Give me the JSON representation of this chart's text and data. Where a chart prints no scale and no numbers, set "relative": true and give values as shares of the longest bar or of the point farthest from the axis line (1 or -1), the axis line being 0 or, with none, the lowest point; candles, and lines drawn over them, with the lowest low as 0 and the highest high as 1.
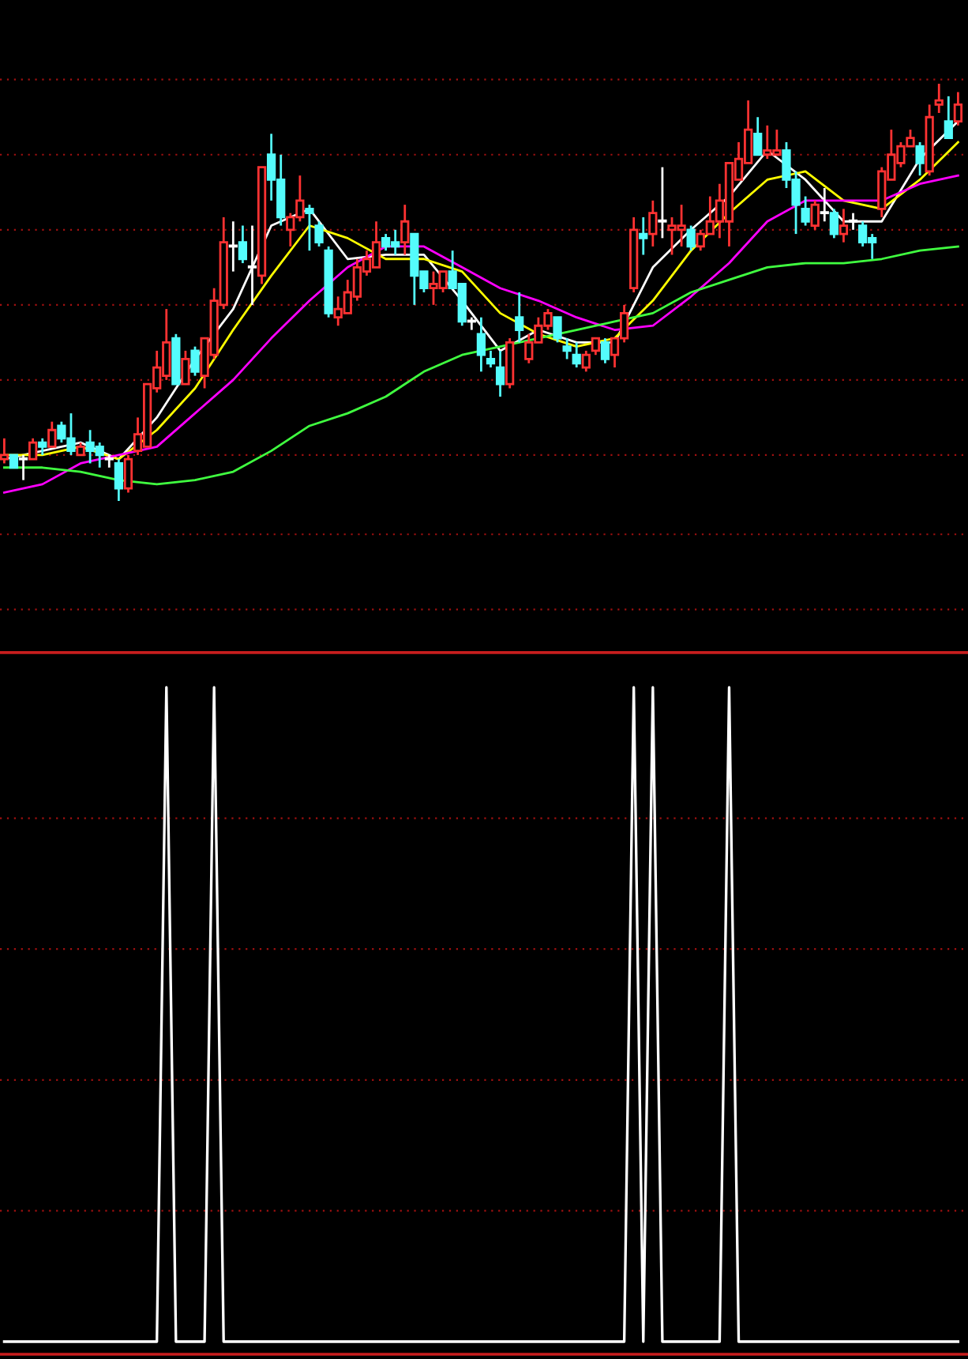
{
  "chart_data": [
    {
      "type": "candlestick",
      "relative": true,
      "tick_labels": false,
      "ref_lines": [
        {
          "axis": "y",
          "value": 1.01,
          "color": "#a01010",
          "line_style": "dotted"
        },
        {
          "axis": "y",
          "value": 0.83,
          "color": "#a01010",
          "line_style": "dotted"
        },
        {
          "axis": "y",
          "value": 0.65,
          "color": "#a01010",
          "line_style": "dotted"
        },
        {
          "axis": "y",
          "value": 0.47,
          "color": "#a01010",
          "line_style": "dotted"
        },
        {
          "axis": "y",
          "value": 0.29,
          "color": "#a01010",
          "line_style": "dotted"
        },
        {
          "axis": "y",
          "value": 0.11,
          "color": "#a01010",
          "line_style": "dotted"
        },
        {
          "axis": "y",
          "value": -0.08,
          "color": "#a01010",
          "line_style": "dotted"
        },
        {
          "axis": "y",
          "value": -0.26,
          "color": "#a01010",
          "line_style": "dotted"
        }
      ],
      "categories": [
        null,
        null,
        null,
        null,
        null,
        null,
        null,
        null,
        null,
        null,
        null,
        null,
        null,
        null,
        null,
        null,
        null,
        null,
        null,
        null,
        null,
        null,
        null,
        null,
        null,
        null,
        null,
        null,
        null,
        null,
        null,
        null,
        null,
        null,
        null,
        null,
        null,
        null,
        null,
        null,
        null,
        null,
        null,
        null,
        null,
        null,
        null,
        null,
        null,
        null,
        null,
        null,
        null,
        null,
        null,
        null,
        null,
        null,
        null,
        null,
        null,
        null,
        null,
        null,
        null,
        null,
        null,
        null,
        null,
        null,
        null,
        null,
        null,
        null,
        null,
        null,
        null,
        null,
        null,
        null,
        null,
        null,
        null,
        null,
        null,
        null,
        null,
        null,
        null,
        null,
        null,
        null,
        null,
        null,
        null,
        null,
        null,
        null,
        null,
        null,
        null
      ],
      "ohlc": [
        [
          0.1,
          0.15,
          0.09,
          0.11
        ],
        [
          0.11,
          0.11,
          0.08,
          0.08
        ],
        [
          0.1,
          0.11,
          0.05,
          0.1
        ],
        [
          0.1,
          0.15,
          0.1,
          0.14
        ],
        [
          0.14,
          0.15,
          0.11,
          0.13
        ],
        [
          0.13,
          0.19,
          0.13,
          0.17
        ],
        [
          0.18,
          0.19,
          0.14,
          0.15
        ],
        [
          0.15,
          0.21,
          0.11,
          0.12
        ],
        [
          0.11,
          0.14,
          0.11,
          0.13
        ],
        [
          0.14,
          0.17,
          0.09,
          0.12
        ],
        [
          0.13,
          0.14,
          0.08,
          0.11
        ],
        [
          0.1,
          0.11,
          0.08,
          0.1
        ],
        [
          0.09,
          0.1,
          0,
          0.03
        ],
        [
          0.03,
          0.11,
          0.02,
          0.1
        ],
        [
          0.12,
          0.2,
          0.11,
          0.16
        ],
        [
          0.13,
          0.28,
          0.13,
          0.28
        ],
        [
          0.27,
          0.36,
          0.26,
          0.32
        ],
        [
          0.3,
          0.46,
          0.29,
          0.38
        ],
        [
          0.39,
          0.4,
          0.28,
          0.28
        ],
        [
          0.28,
          0.36,
          0.28,
          0.34
        ],
        [
          0.36,
          0.37,
          0.3,
          0.31
        ],
        [
          0.3,
          0.39,
          0.27,
          0.39
        ],
        [
          0.35,
          0.51,
          0.34,
          0.48
        ],
        [
          0.47,
          0.68,
          0.46,
          0.62
        ],
        [
          0.61,
          0.67,
          0.55,
          0.61
        ],
        [
          0.62,
          0.66,
          0.57,
          0.58
        ],
        [
          0.56,
          0.66,
          0.47,
          0.56
        ],
        [
          0.54,
          0.8,
          0.52,
          0.8
        ],
        [
          0.83,
          0.88,
          0.72,
          0.77
        ],
        [
          0.77,
          0.83,
          0.66,
          0.68
        ],
        [
          0.65,
          0.69,
          0.61,
          0.68
        ],
        [
          0.68,
          0.78,
          0.67,
          0.72
        ],
        [
          0.7,
          0.71,
          0.6,
          0.69
        ],
        [
          0.66,
          0.67,
          0.61,
          0.62
        ],
        [
          0.6,
          0.61,
          0.44,
          0.45
        ],
        [
          0.44,
          0.49,
          0.42,
          0.46
        ],
        [
          0.45,
          0.53,
          0.45,
          0.5
        ],
        [
          0.49,
          0.58,
          0.48,
          0.56
        ],
        [
          0.55,
          0.6,
          0.54,
          0.58
        ],
        [
          0.56,
          0.67,
          0.56,
          0.62
        ],
        [
          0.63,
          0.64,
          0.6,
          0.61
        ],
        [
          0.62,
          0.65,
          0.59,
          0.61
        ],
        [
          0.62,
          0.71,
          0.59,
          0.67
        ],
        [
          0.64,
          0.64,
          0.47,
          0.54
        ],
        [
          0.55,
          0.55,
          0.5,
          0.51
        ],
        [
          0.51,
          0.55,
          0.47,
          0.52
        ],
        [
          0.51,
          0.55,
          0.5,
          0.55
        ],
        [
          0.55,
          0.6,
          0.51,
          0.51
        ],
        [
          0.52,
          0.52,
          0.42,
          0.43
        ],
        [
          0.43,
          0.44,
          0.41,
          0.43
        ],
        [
          0.4,
          0.44,
          0.31,
          0.35
        ],
        [
          0.34,
          0.36,
          0.32,
          0.33
        ],
        [
          0.32,
          0.36,
          0.25,
          0.28
        ],
        [
          0.28,
          0.39,
          0.27,
          0.38
        ],
        [
          0.44,
          0.5,
          0.38,
          0.41
        ],
        [
          0.34,
          0.4,
          0.33,
          0.38
        ],
        [
          0.38,
          0.44,
          0.38,
          0.42
        ],
        [
          0.42,
          0.46,
          0.41,
          0.45
        ],
        [
          0.44,
          0.44,
          0.38,
          0.39
        ],
        [
          0.37,
          0.39,
          0.34,
          0.36
        ],
        [
          0.35,
          0.38,
          0.32,
          0.33
        ],
        [
          0.32,
          0.36,
          0.31,
          0.35
        ],
        [
          0.36,
          0.39,
          0.35,
          0.39
        ],
        [
          0.38,
          0.39,
          0.33,
          0.34
        ],
        [
          0.35,
          0.39,
          0.32,
          0.39
        ],
        [
          0.39,
          0.47,
          0.38,
          0.45
        ],
        [
          0.51,
          0.68,
          0.5,
          0.65
        ],
        [
          0.64,
          0.68,
          0.59,
          0.63
        ],
        [
          0.64,
          0.72,
          0.61,
          0.69
        ],
        [
          0.67,
          0.8,
          0.63,
          0.67
        ],
        [
          0.65,
          0.68,
          0.59,
          0.66
        ],
        [
          0.65,
          0.71,
          0.61,
          0.66
        ],
        [
          0.65,
          0.66,
          0.6,
          0.61
        ],
        [
          0.61,
          0.65,
          0.6,
          0.64
        ],
        [
          0.64,
          0.73,
          0.64,
          0.67
        ],
        [
          0.67,
          0.76,
          0.63,
          0.72
        ],
        [
          0.67,
          0.81,
          0.61,
          0.81
        ],
        [
          0.77,
          0.86,
          0.77,
          0.82
        ],
        [
          0.81,
          0.96,
          0.81,
          0.89
        ],
        [
          0.88,
          0.92,
          0.83,
          0.83
        ],
        [
          0.83,
          0.9,
          0.82,
          0.84
        ],
        [
          0.83,
          0.89,
          0.83,
          0.84
        ],
        [
          0.84,
          0.86,
          0.75,
          0.77
        ],
        [
          0.77,
          0.79,
          0.64,
          0.71
        ],
        [
          0.7,
          0.73,
          0.66,
          0.67
        ],
        [
          0.66,
          0.72,
          0.65,
          0.71
        ],
        [
          0.69,
          0.75,
          0.67,
          0.69
        ],
        [
          0.69,
          0.7,
          0.63,
          0.64
        ],
        [
          0.64,
          0.7,
          0.62,
          0.66
        ],
        [
          0.67,
          0.69,
          0.65,
          0.67
        ],
        [
          0.66,
          0.67,
          0.61,
          0.62
        ],
        [
          0.63,
          0.64,
          0.58,
          0.62
        ],
        [
          0.7,
          0.8,
          0.68,
          0.79
        ],
        [
          0.77,
          0.89,
          0.77,
          0.83
        ],
        [
          0.81,
          0.86,
          0.8,
          0.85
        ],
        [
          0.85,
          0.89,
          0.85,
          0.87
        ],
        [
          0.85,
          0.86,
          0.78,
          0.81
        ],
        [
          0.79,
          0.95,
          0.78,
          0.92
        ],
        [
          0.95,
          1.0,
          0.93,
          0.96
        ],
        [
          0.91,
          0.97,
          0.87,
          0.87
        ],
        [
          0.91,
          0.98,
          0.9,
          0.95
        ]
      ],
      "series": [
        {
          "type": "line",
          "color": "#ffffff",
          "values": [
            0.1,
            null,
            null,
            null,
            0.12,
            null,
            null,
            null,
            0.14,
            null,
            null,
            null,
            0.1,
            null,
            null,
            null,
            0.2,
            null,
            null,
            null,
            0.34,
            null,
            null,
            null,
            0.46,
            null,
            null,
            null,
            0.66,
            null,
            null,
            null,
            0.7,
            null,
            null,
            null,
            0.58,
            null,
            null,
            null,
            0.59,
            null,
            null,
            null,
            0.59,
            null,
            null,
            null,
            0.48,
            null,
            null,
            null,
            0.36,
            null,
            null,
            null,
            0.41,
            null,
            null,
            null,
            0.38,
            null,
            null,
            null,
            0.38,
            null,
            null,
            null,
            0.56,
            null,
            null,
            null,
            0.65,
            null,
            null,
            null,
            0.73,
            null,
            null,
            null,
            0.84,
            null,
            null,
            null,
            0.77,
            null,
            null,
            null,
            0.67,
            null,
            null,
            null,
            0.67,
            null,
            null,
            null,
            0.82,
            null,
            null,
            null,
            0.91
          ]
        },
        {
          "type": "line",
          "color": "#ffff00",
          "values": [
            0.11,
            null,
            null,
            null,
            0.11,
            null,
            null,
            null,
            0.13,
            null,
            null,
            null,
            0.1,
            null,
            null,
            null,
            0.17,
            null,
            null,
            null,
            0.27,
            null,
            null,
            null,
            0.41,
            null,
            null,
            null,
            0.54,
            null,
            null,
            null,
            0.66,
            null,
            null,
            null,
            0.63,
            null,
            null,
            null,
            0.58,
            null,
            null,
            null,
            0.58,
            null,
            null,
            null,
            0.55,
            null,
            null,
            null,
            0.45,
            null,
            null,
            null,
            0.4,
            null,
            null,
            null,
            0.37,
            null,
            null,
            null,
            0.39,
            null,
            null,
            null,
            0.48,
            null,
            null,
            null,
            0.6,
            null,
            null,
            null,
            0.69,
            null,
            null,
            null,
            0.77,
            null,
            null,
            null,
            0.79,
            null,
            null,
            null,
            0.72,
            null,
            null,
            null,
            0.7,
            null,
            null,
            null,
            0.77,
            null,
            null,
            null,
            0.86
          ]
        },
        {
          "type": "line",
          "color": "#ff00ff",
          "values": [
            0.02,
            null,
            null,
            null,
            0.04,
            null,
            null,
            null,
            0.09,
            null,
            null,
            null,
            0.11,
            null,
            null,
            null,
            0.13,
            null,
            null,
            null,
            0.21,
            null,
            null,
            null,
            0.29,
            null,
            null,
            null,
            0.39,
            null,
            null,
            null,
            0.48,
            null,
            null,
            null,
            0.56,
            null,
            null,
            null,
            0.61,
            null,
            null,
            null,
            0.61,
            null,
            null,
            null,
            0.56,
            null,
            null,
            null,
            0.51,
            null,
            null,
            null,
            0.48,
            null,
            null,
            null,
            0.44,
            null,
            null,
            null,
            0.41,
            null,
            null,
            null,
            0.42,
            null,
            null,
            null,
            0.49,
            null,
            null,
            null,
            0.57,
            null,
            null,
            null,
            0.67,
            null,
            null,
            null,
            0.72,
            null,
            null,
            null,
            0.72,
            null,
            null,
            null,
            0.72,
            null,
            null,
            null,
            0.76,
            null,
            null,
            null,
            0.78
          ]
        },
        {
          "type": "line",
          "color": "#40ff40",
          "values": [
            0.08,
            null,
            null,
            null,
            0.08,
            null,
            null,
            null,
            0.07,
            null,
            null,
            null,
            0.05,
            null,
            null,
            null,
            0.04,
            null,
            null,
            null,
            0.05,
            null,
            null,
            null,
            0.07,
            null,
            null,
            null,
            0.12,
            null,
            null,
            null,
            0.18,
            null,
            null,
            null,
            0.21,
            null,
            null,
            null,
            0.25,
            null,
            null,
            null,
            0.31,
            null,
            null,
            null,
            0.35,
            null,
            null,
            null,
            0.37,
            null,
            null,
            null,
            0.39,
            null,
            null,
            null,
            0.41,
            null,
            null,
            null,
            0.43,
            null,
            null,
            null,
            0.45,
            null,
            null,
            null,
            0.5,
            null,
            null,
            null,
            0.53,
            null,
            null,
            null,
            0.56,
            null,
            null,
            null,
            0.57,
            null,
            null,
            null,
            0.57,
            null,
            null,
            null,
            0.58,
            null,
            null,
            null,
            0.6,
            null,
            null,
            null,
            0.61
          ]
        }
      ]
    },
    {
      "type": "line",
      "relative": true,
      "tick_labels": false,
      "color": "#ffffff",
      "ref_lines": [
        {
          "axis": "y",
          "value": 0.8,
          "color": "#a01010",
          "line_style": "dotted"
        },
        {
          "axis": "y",
          "value": 0.6,
          "color": "#a01010",
          "line_style": "dotted"
        },
        {
          "axis": "y",
          "value": 0.4,
          "color": "#a01010",
          "line_style": "dotted"
        },
        {
          "axis": "y",
          "value": 0.2,
          "color": "#a01010",
          "line_style": "dotted"
        }
      ],
      "categories": [
        null,
        null,
        null,
        null,
        null,
        null,
        null,
        null,
        null,
        null,
        null,
        null,
        null,
        null,
        null,
        null,
        null,
        null,
        null,
        null,
        null,
        null,
        null,
        null,
        null,
        null,
        null,
        null,
        null,
        null,
        null,
        null,
        null,
        null,
        null,
        null,
        null,
        null,
        null,
        null,
        null,
        null,
        null,
        null,
        null,
        null,
        null,
        null,
        null,
        null,
        null,
        null,
        null,
        null,
        null,
        null,
        null,
        null,
        null,
        null,
        null,
        null,
        null,
        null,
        null,
        null,
        null,
        null,
        null,
        null,
        null,
        null,
        null,
        null,
        null,
        null,
        null,
        null,
        null,
        null,
        null,
        null,
        null,
        null,
        null,
        null,
        null,
        null,
        null,
        null,
        null,
        null,
        null,
        null,
        null,
        null,
        null,
        null,
        null,
        null,
        null
      ],
      "values": [
        0,
        0,
        0,
        0,
        0,
        0,
        0,
        0,
        0,
        0,
        0,
        0,
        0,
        0,
        0,
        0,
        0,
        1,
        0,
        0,
        0,
        0,
        1,
        0,
        0,
        0,
        0,
        0,
        0,
        0,
        0,
        0,
        0,
        0,
        0,
        0,
        0,
        0,
        0,
        0,
        0,
        0,
        0,
        0,
        0,
        0,
        0,
        0,
        0,
        0,
        0,
        0,
        0,
        0,
        0,
        0,
        0,
        0,
        0,
        0,
        0,
        0,
        0,
        0,
        0,
        0,
        1,
        0,
        1,
        0,
        0,
        0,
        0,
        0,
        0,
        0,
        1,
        0,
        0,
        0,
        0,
        0,
        0,
        0,
        0,
        0,
        0,
        0,
        0,
        0,
        0,
        0,
        0,
        0,
        0,
        0,
        0,
        0,
        0,
        0,
        0
      ]
    }
  ]
}
